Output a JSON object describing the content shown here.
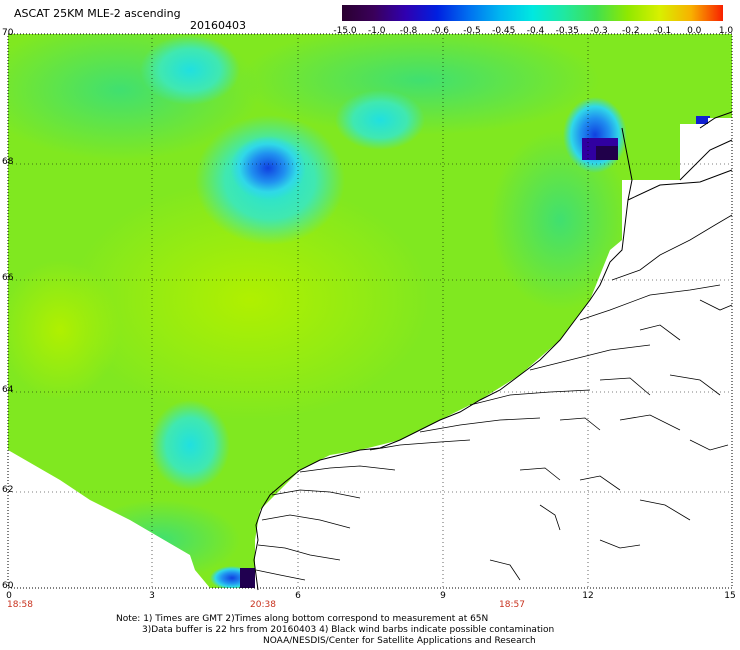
{
  "header": {
    "title": "ASCAT 25KM MLE-2 ascending",
    "date": "20160403"
  },
  "colorbar": {
    "labels": [
      "-15.0",
      "-1.0",
      "-0.8",
      "-0.6",
      "-0.5",
      "-0.45",
      "-0.4",
      "-0.35",
      "-0.3",
      "-0.2",
      "-0.1",
      "0.0",
      "1.0"
    ],
    "colors": [
      "#2a0030",
      "#3a005a",
      "#3000b0",
      "#0020e0",
      "#0070f0",
      "#00b8f0",
      "#00e8e0",
      "#20e8a0",
      "#40e050",
      "#90e800",
      "#d8f000",
      "#f8b000",
      "#f82000"
    ]
  },
  "axes": {
    "lat_labels": [
      "70",
      "68",
      "66",
      "64",
      "62",
      "60"
    ],
    "lon_labels": [
      "0",
      "3",
      "6",
      "9",
      "12",
      "15"
    ],
    "time_labels": [
      "18:58",
      "20:38",
      "18:57"
    ]
  },
  "notes": {
    "line1": "Note: 1) Times are GMT 2)Times along bottom correspond to measurement at 65N",
    "line2": "3)Data buffer is 22 hrs from 20160403 4) Black wind barbs indicate possible contamination",
    "line3": "NOAA/NESDIS/Center for Satellite Applications and Research"
  }
}
